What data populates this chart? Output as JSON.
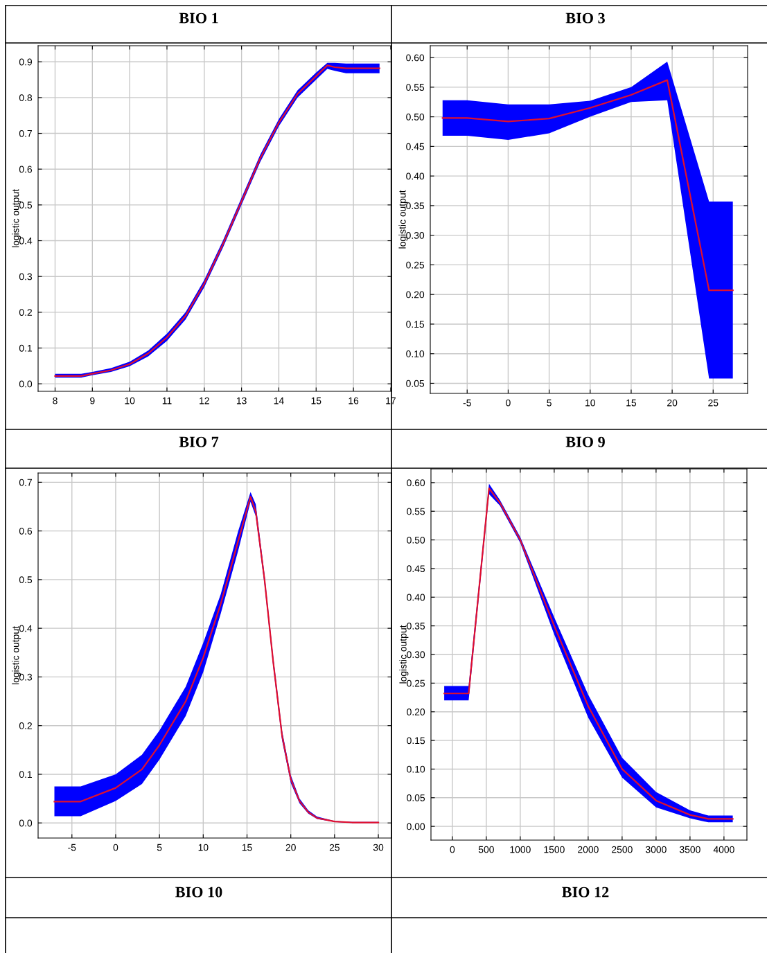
{
  "chart_data": [
    {
      "type": "line",
      "title": "BIO 7",
      "annotations": [
        "BIO 1"
      ],
      "ylabel": "logistic output",
      "grid": true,
      "xlim": [
        7.545,
        17.02
      ],
      "ylim": [
        -0.021,
        0.945
      ],
      "xticks": [
        8,
        9,
        10,
        11,
        12,
        13,
        14,
        15,
        16,
        17
      ],
      "yticks": [
        {
          "value": 0,
          "label": "0.0"
        },
        {
          "value": 0.1,
          "label": "0.1"
        },
        {
          "value": 0.2,
          "label": "0.2"
        },
        {
          "value": 0.3,
          "label": "0.3"
        },
        {
          "value": 0.4,
          "label": "0.4"
        },
        {
          "value": 0.5,
          "label": "0.5"
        },
        {
          "value": 0.6,
          "label": "0.6"
        },
        {
          "value": 0.7,
          "label": "0.7"
        },
        {
          "value": 0.8,
          "label": "0.8"
        },
        {
          "value": 0.9,
          "label": "0.9"
        }
      ],
      "series": [
        {
          "color": "#e0102f",
          "x": [
            8,
            8.7,
            9,
            9.5,
            10,
            10.5,
            11,
            11.5,
            12,
            12.5,
            13,
            13.5,
            14,
            14.5,
            15,
            15.3,
            15.5,
            15.8,
            16,
            16.7
          ],
          "values": [
            0.022,
            0.022,
            0.028,
            0.038,
            0.055,
            0.085,
            0.13,
            0.19,
            0.28,
            0.39,
            0.51,
            0.63,
            0.73,
            0.81,
            0.86,
            0.89,
            0.885,
            0.882,
            0.882,
            0.882
          ],
          "lower": [
            0.017,
            0.017,
            0.024,
            0.033,
            0.049,
            0.077,
            0.12,
            0.18,
            0.27,
            0.38,
            0.5,
            0.62,
            0.72,
            0.8,
            0.85,
            0.88,
            0.875,
            0.868,
            0.868,
            0.868
          ],
          "upper": [
            0.028,
            0.028,
            0.033,
            0.044,
            0.062,
            0.093,
            0.14,
            0.2,
            0.29,
            0.4,
            0.52,
            0.64,
            0.74,
            0.82,
            0.87,
            0.897,
            0.897,
            0.895,
            0.895,
            0.895
          ]
        }
      ]
    },
    {
      "type": "line",
      "title": "BIO 9",
      "annotations": [
        "BIO 3"
      ],
      "ylabel": "logistic output",
      "grid": true,
      "xlim": [
        -9.5,
        29.2
      ],
      "ylim": [
        0.033,
        0.62
      ],
      "xticks": [
        -5,
        0,
        5,
        10,
        15,
        20,
        25
      ],
      "yticks": [
        {
          "value": 0.05,
          "label": "0.05"
        },
        {
          "value": 0.1,
          "label": "0.10"
        },
        {
          "value": 0.15,
          "label": "0.15"
        },
        {
          "value": 0.2,
          "label": "0.20"
        },
        {
          "value": 0.25,
          "label": "0.25"
        },
        {
          "value": 0.3,
          "label": "0.30"
        },
        {
          "value": 0.35,
          "label": "0.35"
        },
        {
          "value": 0.4,
          "label": "0.40"
        },
        {
          "value": 0.45,
          "label": "0.45"
        },
        {
          "value": 0.5,
          "label": "0.50"
        },
        {
          "value": 0.55,
          "label": "0.55"
        },
        {
          "value": 0.6,
          "label": "0.60"
        }
      ],
      "series": [
        {
          "color": "#e0102f",
          "x": [
            -8,
            -5,
            0,
            5,
            10,
            15,
            19.4,
            24.5,
            27.4
          ],
          "values": [
            0.498,
            0.498,
            0.492,
            0.497,
            0.515,
            0.537,
            0.562,
            0.207,
            0.207
          ],
          "lower": [
            0.468,
            0.468,
            0.461,
            0.472,
            0.5,
            0.525,
            0.528,
            0.058,
            0.058
          ],
          "upper": [
            0.528,
            0.528,
            0.521,
            0.521,
            0.527,
            0.55,
            0.593,
            0.357,
            0.357
          ]
        }
      ]
    },
    {
      "type": "line",
      "title": "BIO 10",
      "ylabel": "logistic output",
      "grid": true,
      "xlim": [
        -8.86,
        31.5
      ],
      "ylim": [
        -0.031,
        0.719
      ],
      "xticks": [
        -5,
        0,
        5,
        10,
        15,
        20,
        25,
        30
      ],
      "yticks": [
        {
          "value": 0,
          "label": "0.0"
        },
        {
          "value": 0.1,
          "label": "0.1"
        },
        {
          "value": 0.2,
          "label": "0.2"
        },
        {
          "value": 0.3,
          "label": "0.3"
        },
        {
          "value": 0.4,
          "label": "0.4"
        },
        {
          "value": 0.5,
          "label": "0.5"
        },
        {
          "value": 0.6,
          "label": "0.6"
        },
        {
          "value": 0.7,
          "label": "0.7"
        }
      ],
      "series": [
        {
          "color": "#e0102f",
          "x": [
            -7,
            -4,
            0,
            3,
            5,
            8,
            10,
            12,
            14,
            15.4,
            16,
            17,
            18,
            19,
            20,
            21,
            22,
            23,
            25,
            27,
            30
          ],
          "values": [
            0.044,
            0.044,
            0.072,
            0.11,
            0.16,
            0.25,
            0.34,
            0.45,
            0.58,
            0.67,
            0.64,
            0.5,
            0.33,
            0.18,
            0.09,
            0.045,
            0.022,
            0.01,
            0.003,
            0.001,
            0.001
          ],
          "lower": [
            0.014,
            0.014,
            0.045,
            0.08,
            0.13,
            0.22,
            0.31,
            0.43,
            0.56,
            0.66,
            0.63,
            0.49,
            0.32,
            0.17,
            0.082,
            0.04,
            0.019,
            0.008,
            0.002,
            0.0,
            0.0
          ],
          "upper": [
            0.075,
            0.075,
            0.1,
            0.14,
            0.19,
            0.28,
            0.37,
            0.47,
            0.6,
            0.68,
            0.655,
            0.51,
            0.34,
            0.19,
            0.098,
            0.05,
            0.026,
            0.013,
            0.004,
            0.002,
            0.002
          ]
        }
      ]
    },
    {
      "type": "line",
      "title": "BIO 12",
      "ylabel": "logistic output",
      "grid": true,
      "xlim": [
        -315,
        4338
      ],
      "ylim": [
        -0.024,
        0.624
      ],
      "xticks": [
        0,
        500,
        1000,
        1500,
        2000,
        2500,
        3000,
        3500,
        4000
      ],
      "yticks": [
        {
          "value": 0,
          "label": "0.00"
        },
        {
          "value": 0.05,
          "label": "0.05"
        },
        {
          "value": 0.1,
          "label": "0.10"
        },
        {
          "value": 0.15,
          "label": "0.15"
        },
        {
          "value": 0.2,
          "label": "0.20"
        },
        {
          "value": 0.25,
          "label": "0.25"
        },
        {
          "value": 0.3,
          "label": "0.30"
        },
        {
          "value": 0.35,
          "label": "0.35"
        },
        {
          "value": 0.4,
          "label": "0.40"
        },
        {
          "value": 0.45,
          "label": "0.45"
        },
        {
          "value": 0.5,
          "label": "0.50"
        },
        {
          "value": 0.55,
          "label": "0.55"
        },
        {
          "value": 0.6,
          "label": "0.60"
        }
      ],
      "series": [
        {
          "color": "#e0102f",
          "x": [
            -120,
            240,
            540,
            700,
            1000,
            1500,
            2000,
            2500,
            3000,
            3500,
            3770,
            4130
          ],
          "values": [
            0.232,
            0.232,
            0.59,
            0.565,
            0.5,
            0.35,
            0.21,
            0.1,
            0.045,
            0.02,
            0.013,
            0.013
          ],
          "lower": [
            0.22,
            0.22,
            0.58,
            0.56,
            0.495,
            0.335,
            0.19,
            0.085,
            0.033,
            0.014,
            0.007,
            0.007
          ],
          "upper": [
            0.245,
            0.245,
            0.598,
            0.57,
            0.505,
            0.365,
            0.23,
            0.12,
            0.06,
            0.028,
            0.019,
            0.019
          ]
        }
      ]
    }
  ]
}
